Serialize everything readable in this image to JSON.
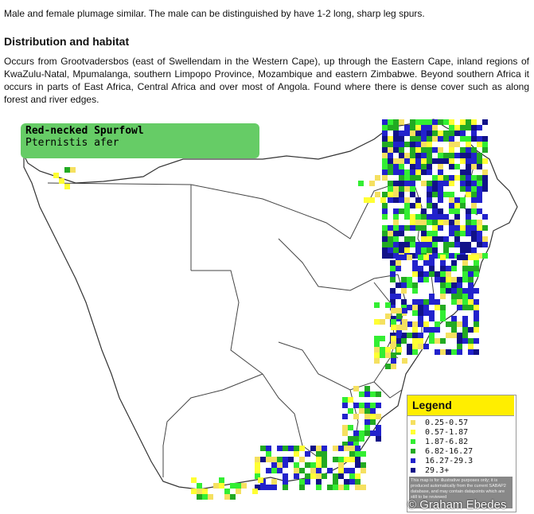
{
  "intro": "Male and female plumage similar. The male can be distinguished by have 1-2 long, sharp leg spurs.",
  "section_title": "Distribution and habitat",
  "section_text": "Occurs from Grootvadersbos (east of Swellendam in the Western Cape), up through the Eastern Cape, inland regions of KwaZulu-Natal, Mpumalanga, southern Limpopo Province, Mozambique and eastern Zimbabwe. Beyond southern Africa it occurs in parts of East Africa, Central Africa and over most of Angola. Found where there is dense cover such as along forest and river edges.",
  "map": {
    "common_name": "Red-necked Spurfowl",
    "scientific_name": "Pternistis afer",
    "legend_title": "Legend",
    "legend": [
      {
        "label": "0.25-0.57",
        "color": "#f5e060"
      },
      {
        "label": "0.57-1.87",
        "color": "#ffff33"
      },
      {
        "label": "1.87-6.82",
        "color": "#33ee33"
      },
      {
        "label": "6.82-16.27",
        "color": "#22aa22"
      },
      {
        "label": "16.27-29.3",
        "color": "#2222cc"
      },
      {
        "label": "29.3+",
        "color": "#111188"
      }
    ],
    "legend_note": "This map is for illustrative purposes only; it is produced automatically from the current SABAP2 database, and may contain datapoints which are still to be reviewed",
    "copyright": "© Graham Ebedes"
  }
}
